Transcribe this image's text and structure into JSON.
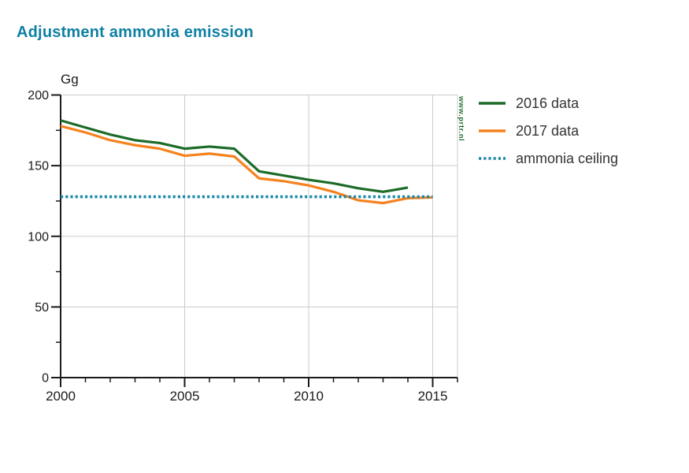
{
  "page": {
    "title": "Adjustment ammonia emission"
  },
  "watermark": "www.prtr.nl",
  "colors": {
    "title": "#0e80a3",
    "grid": "#cccccc",
    "axis": "#1a1a1a",
    "tick_label": "#1a1a1a",
    "legend_text": "#333333",
    "watermark": "#1a6b2a",
    "background": "#ffffff"
  },
  "chart_data": {
    "type": "line",
    "title": "Adjustment ammonia emission",
    "xlabel": "",
    "ylabel": "Gg",
    "ylim": [
      0,
      200
    ],
    "xlim": [
      2000,
      2016
    ],
    "yticks": [
      0,
      50,
      100,
      150,
      200
    ],
    "yticks_minor": [
      25,
      75,
      125,
      175
    ],
    "xticks": [
      2000,
      2005,
      2010,
      2015
    ],
    "xticks_minor_step": 1,
    "grid": true,
    "legend_position": "right",
    "series": [
      {
        "name": "2016 data",
        "color": "#1c6b28",
        "style": "solid",
        "x": [
          2000,
          2001,
          2002,
          2003,
          2004,
          2005,
          2006,
          2007,
          2008,
          2009,
          2010,
          2011,
          2012,
          2013,
          2014
        ],
        "values": [
          182,
          177,
          172,
          168,
          166,
          162,
          163.5,
          162,
          146,
          143,
          140,
          137.5,
          134,
          131.5,
          134.5
        ]
      },
      {
        "name": "2017 data",
        "color": "#f5821e",
        "style": "solid",
        "x": [
          2000,
          2001,
          2002,
          2003,
          2004,
          2005,
          2006,
          2007,
          2008,
          2009,
          2010,
          2011,
          2012,
          2013,
          2014,
          2015
        ],
        "values": [
          178,
          173.5,
          168,
          164.5,
          162,
          157,
          158.5,
          156.5,
          141,
          139,
          136,
          131.5,
          125.5,
          123.5,
          127,
          127.5
        ]
      },
      {
        "name": "ammonia ceiling",
        "color": "#1d89a8",
        "style": "dotted",
        "x": [
          2000,
          2015
        ],
        "values": [
          128,
          128
        ]
      }
    ]
  }
}
